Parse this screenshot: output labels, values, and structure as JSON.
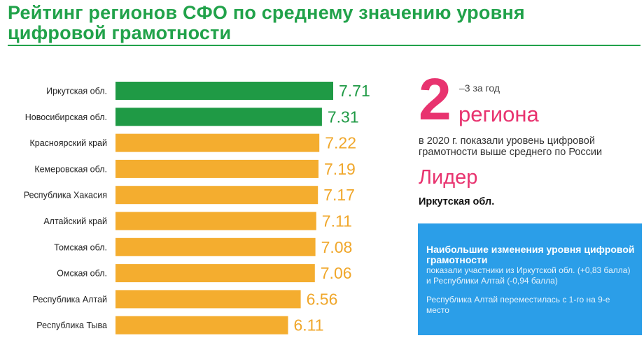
{
  "header": {
    "title_line1": "Рейтинг регионов СФО по среднему значению уровня",
    "title_line2": "цифровой грамотности"
  },
  "colors": {
    "brand_green": "#21a24a",
    "bar_green": "#1f9a45",
    "bar_orange": "#f4ad2f",
    "value_orange": "#f0a72b",
    "accent_pink": "#e8336f",
    "info_blue": "#2b9ee8"
  },
  "chart_data": {
    "type": "bar",
    "orientation": "horizontal",
    "title": "Рейтинг регионов СФО по среднему значению уровня цифровой грамотности",
    "categories": [
      "Иркутская обл.",
      "Новосибирская обл.",
      "Красноярский край",
      "Кемеровская обл.",
      "Республика Хакасия",
      "Алтайский край",
      "Томская обл.",
      "Омская обл.",
      "Республика Алтай",
      "Республика Тыва"
    ],
    "values": [
      7.71,
      7.31,
      7.22,
      7.19,
      7.17,
      7.11,
      7.08,
      7.06,
      6.56,
      6.11
    ],
    "value_labels": [
      "7.71",
      "7.31",
      "7.22",
      "7.19",
      "7.17",
      "7.11",
      "7.08",
      "7.06",
      "6.56",
      "6.11"
    ],
    "highlight": [
      "green",
      "green",
      "orange",
      "orange",
      "orange",
      "orange",
      "orange",
      "orange",
      "orange",
      "orange"
    ],
    "xlim": [
      0,
      7.71
    ],
    "xlabel": "",
    "ylabel": "",
    "grid": false
  },
  "summary": {
    "big_number": "2",
    "change_note": "–3 за год",
    "regions_word": "региона",
    "description": "в 2020 г. показали уровень цифровой грамотности выше среднего по России",
    "leader_heading": "Лидер",
    "leader_name": "Иркутская обл."
  },
  "info_box": {
    "heading": "Наибольшие изменения уровня цифровой грамотности",
    "line1": "показали участники из Иркутской обл. (+0,83 балла) и Республики Алтай (-0,94 балла)",
    "line2": "Республика Алтай переместилась с 1-го на 9-е место"
  }
}
